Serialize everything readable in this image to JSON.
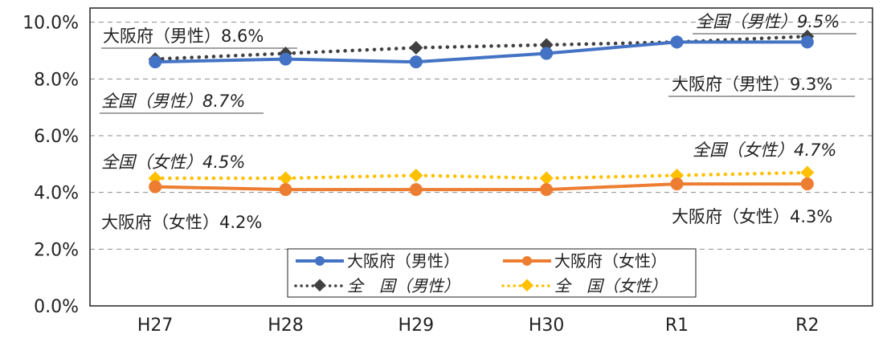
{
  "chart_data": {
    "type": "line",
    "categories": [
      "H27",
      "H28",
      "H29",
      "H30",
      "R1",
      "R2"
    ],
    "y_ticks": [
      "0.0%",
      "2.0%",
      "4.0%",
      "6.0%",
      "8.0%",
      "10.0%"
    ],
    "ylim": [
      0,
      10.5
    ],
    "grid": true,
    "legend_position": "bottom-center",
    "series": [
      {
        "name": "大阪府（男性）",
        "values": [
          8.6,
          8.7,
          8.6,
          8.9,
          9.3,
          9.3
        ],
        "color": "#4472C4",
        "style": "solid",
        "marker": "circle"
      },
      {
        "name": "大阪府（女性）",
        "values": [
          4.2,
          4.1,
          4.1,
          4.1,
          4.3,
          4.3
        ],
        "color": "#ED7D31",
        "style": "solid",
        "marker": "circle"
      },
      {
        "name": "全　国（男性）",
        "values": [
          8.7,
          8.9,
          9.1,
          9.2,
          9.3,
          9.5
        ],
        "color": "#404040",
        "style": "dotted",
        "marker": "diamond"
      },
      {
        "name": "全　国（女性）",
        "values": [
          4.5,
          4.5,
          4.6,
          4.5,
          4.6,
          4.7
        ],
        "color": "#FFC000",
        "style": "dotted",
        "marker": "diamond"
      }
    ],
    "annotations": [
      "大阪府（男性）8.6%",
      "全国（男性）9.5%",
      "全国（男性）8.7%",
      "大阪府（男性）9.3%",
      "全国（女性）4.5%",
      "全国（女性）4.7%",
      "大阪府（女性）4.2%",
      "大阪府（女性）4.3%"
    ]
  }
}
